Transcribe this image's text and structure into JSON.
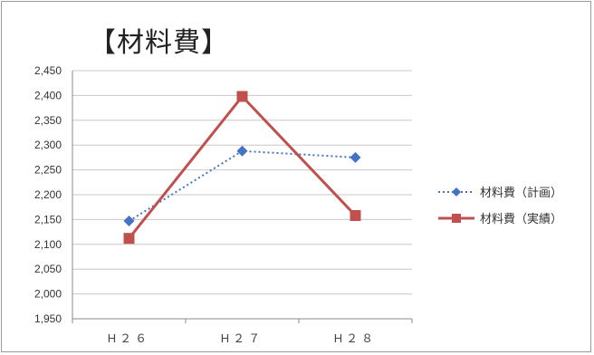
{
  "chart_data": {
    "type": "line",
    "title": "【材料費】",
    "categories": [
      "H２６",
      "H２７",
      "H２８"
    ],
    "ylim": [
      1950,
      2450
    ],
    "yticks": [
      "1,950",
      "2,000",
      "2,050",
      "2,100",
      "2,150",
      "2,200",
      "2,250",
      "2,300",
      "2,350",
      "2,400",
      "2,450"
    ],
    "grid": true,
    "legend": "right",
    "series": [
      {
        "name": "材料費（計画）",
        "values": [
          2147,
          2288,
          2275
        ],
        "color": "#4472c4",
        "line_style": "dotted",
        "marker": "diamond"
      },
      {
        "name": "材料費（実績）",
        "values": [
          2112,
          2398,
          2158
        ],
        "color": "#c0504d",
        "line_style": "solid",
        "marker": "square"
      }
    ]
  }
}
